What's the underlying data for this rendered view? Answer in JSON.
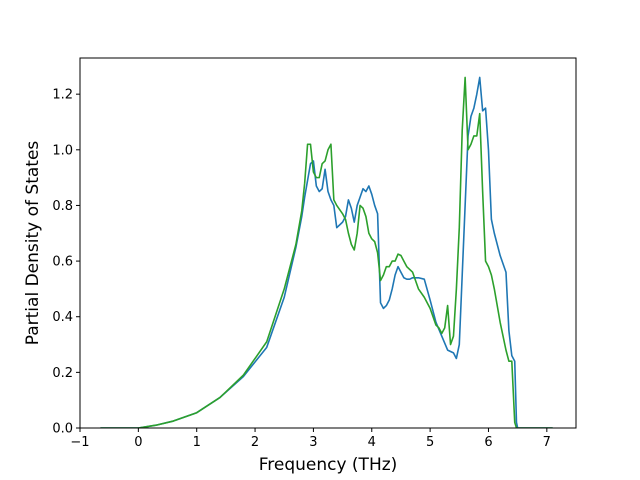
{
  "chart_data": {
    "type": "line",
    "title": "",
    "xlabel": "Frequency (THz)",
    "ylabel": "Partial Density of States",
    "xlim": [
      -1.0,
      7.5
    ],
    "ylim": [
      0.0,
      1.33
    ],
    "xticks": [
      -1,
      0,
      1,
      2,
      3,
      4,
      5,
      6,
      7
    ],
    "xtick_labels": [
      "−1",
      "0",
      "1",
      "2",
      "3",
      "4",
      "5",
      "6",
      "7"
    ],
    "yticks": [
      0.0,
      0.2,
      0.4,
      0.6,
      0.8,
      1.0,
      1.2
    ],
    "ytick_labels": [
      "0.0",
      "0.2",
      "0.4",
      "0.6",
      "0.8",
      "1.0",
      "1.2"
    ],
    "grid": false,
    "legend": "none",
    "series": [
      {
        "color": "#1f77b4",
        "x": [
          -0.65,
          0.0,
          0.3,
          0.6,
          1.0,
          1.4,
          1.8,
          2.2,
          2.5,
          2.7,
          2.8,
          2.85,
          2.9,
          2.95,
          3.0,
          3.05,
          3.1,
          3.15,
          3.2,
          3.25,
          3.3,
          3.35,
          3.4,
          3.5,
          3.55,
          3.6,
          3.65,
          3.7,
          3.75,
          3.8,
          3.85,
          3.9,
          3.95,
          4.0,
          4.05,
          4.1,
          4.15,
          4.2,
          4.25,
          4.3,
          4.35,
          4.4,
          4.45,
          4.5,
          4.55,
          4.6,
          4.65,
          4.7,
          4.8,
          4.9,
          5.0,
          5.05,
          5.1,
          5.2,
          5.3,
          5.4,
          5.45,
          5.5,
          5.55,
          5.6,
          5.65,
          5.7,
          5.75,
          5.8,
          5.85,
          5.9,
          5.95,
          6.0,
          6.05,
          6.1,
          6.2,
          6.3,
          6.35,
          6.4,
          6.45,
          6.48,
          6.5,
          7.1
        ],
        "y": [
          0.0,
          0.0,
          0.01,
          0.025,
          0.055,
          0.11,
          0.185,
          0.29,
          0.47,
          0.65,
          0.76,
          0.83,
          0.89,
          0.95,
          0.96,
          0.87,
          0.85,
          0.86,
          0.93,
          0.85,
          0.82,
          0.8,
          0.72,
          0.74,
          0.76,
          0.82,
          0.79,
          0.74,
          0.8,
          0.83,
          0.86,
          0.85,
          0.87,
          0.84,
          0.8,
          0.77,
          0.45,
          0.43,
          0.44,
          0.46,
          0.5,
          0.55,
          0.58,
          0.56,
          0.54,
          0.535,
          0.535,
          0.54,
          0.54,
          0.535,
          0.46,
          0.42,
          0.38,
          0.33,
          0.28,
          0.27,
          0.25,
          0.3,
          0.55,
          0.8,
          1.05,
          1.12,
          1.15,
          1.2,
          1.26,
          1.14,
          1.15,
          1.0,
          0.75,
          0.7,
          0.62,
          0.56,
          0.35,
          0.26,
          0.24,
          0.02,
          0.0,
          0.0
        ]
      },
      {
        "color": "#2ca02c",
        "x": [
          -0.65,
          0.0,
          0.3,
          0.6,
          1.0,
          1.4,
          1.8,
          2.2,
          2.5,
          2.7,
          2.8,
          2.85,
          2.9,
          2.95,
          3.0,
          3.05,
          3.1,
          3.15,
          3.2,
          3.25,
          3.3,
          3.35,
          3.4,
          3.5,
          3.55,
          3.6,
          3.65,
          3.7,
          3.75,
          3.8,
          3.85,
          3.9,
          3.95,
          4.0,
          4.05,
          4.1,
          4.15,
          4.2,
          4.25,
          4.3,
          4.35,
          4.4,
          4.45,
          4.5,
          4.55,
          4.6,
          4.65,
          4.7,
          4.8,
          4.9,
          5.0,
          5.05,
          5.1,
          5.15,
          5.2,
          5.25,
          5.3,
          5.35,
          5.4,
          5.45,
          5.5,
          5.55,
          5.6,
          5.65,
          5.7,
          5.75,
          5.8,
          5.85,
          5.9,
          5.95,
          6.0,
          6.05,
          6.1,
          6.2,
          6.3,
          6.35,
          6.4,
          6.45,
          6.48,
          6.5,
          7.1
        ],
        "y": [
          0.0,
          0.0,
          0.01,
          0.025,
          0.055,
          0.11,
          0.19,
          0.31,
          0.5,
          0.66,
          0.78,
          0.88,
          1.02,
          1.02,
          0.92,
          0.9,
          0.9,
          0.95,
          0.96,
          1.0,
          1.02,
          0.82,
          0.8,
          0.77,
          0.75,
          0.7,
          0.66,
          0.64,
          0.7,
          0.8,
          0.79,
          0.76,
          0.7,
          0.68,
          0.67,
          0.63,
          0.53,
          0.55,
          0.58,
          0.58,
          0.6,
          0.6,
          0.625,
          0.62,
          0.6,
          0.58,
          0.57,
          0.56,
          0.5,
          0.47,
          0.43,
          0.4,
          0.37,
          0.36,
          0.34,
          0.36,
          0.44,
          0.3,
          0.33,
          0.5,
          0.72,
          1.07,
          1.26,
          1.0,
          1.02,
          1.05,
          1.05,
          1.13,
          0.85,
          0.6,
          0.58,
          0.55,
          0.5,
          0.38,
          0.28,
          0.24,
          0.24,
          0.02,
          0.0,
          0.0,
          0.0
        ]
      }
    ]
  }
}
